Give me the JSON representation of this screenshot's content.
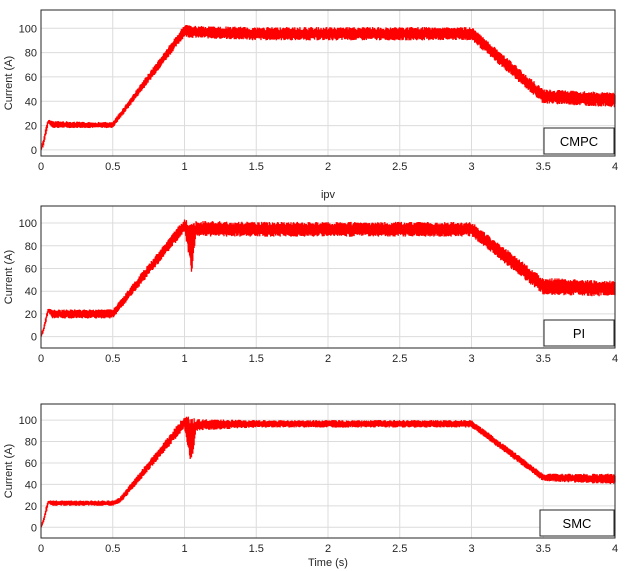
{
  "chart_data": [
    {
      "type": "line",
      "title": "",
      "xlabel": "",
      "ylabel": "Current (A)",
      "xlim": [
        0,
        4
      ],
      "ylim": [
        -5,
        115
      ],
      "xticks": [
        "0",
        "0.5",
        "1",
        "1.5",
        "2",
        "2.5",
        "3",
        "3.5",
        "4"
      ],
      "yticks": [
        "0",
        "20",
        "40",
        "60",
        "80",
        "100"
      ],
      "grid": true,
      "legend_position": "bottom-right",
      "series": [
        {
          "name": "CMPC",
          "color": "#ff0000",
          "x": [
            0,
            0.02,
            0.05,
            0.08,
            0.3,
            0.5,
            1.0,
            1.05,
            1.5,
            2.0,
            2.5,
            3.0,
            3.5,
            4.0
          ],
          "y_low": [
            0,
            5,
            22,
            18,
            18,
            18,
            93,
            92,
            90,
            90,
            90,
            90,
            38,
            35
          ],
          "y_high": [
            0,
            10,
            25,
            24,
            23,
            23,
            103,
            102,
            101,
            101,
            101,
            101,
            50,
            47
          ]
        }
      ]
    },
    {
      "type": "line",
      "title": "ipv",
      "xlabel": "",
      "ylabel": "Current (A)",
      "xlim": [
        0,
        4
      ],
      "ylim": [
        -10,
        115
      ],
      "xticks": [
        "0",
        "0.5",
        "1",
        "1.5",
        "2",
        "2.5",
        "3",
        "3.5",
        "4"
      ],
      "yticks": [
        "0",
        "20",
        "40",
        "60",
        "80",
        "100"
      ],
      "grid": true,
      "legend_position": "bottom-right",
      "series": [
        {
          "name": "PI",
          "color": "#ff0000",
          "x": [
            0,
            0.02,
            0.05,
            0.08,
            0.3,
            0.5,
            1.0,
            1.05,
            1.08,
            1.5,
            2.0,
            2.5,
            3.0,
            3.5,
            4.0
          ],
          "y_low": [
            0,
            5,
            22,
            16,
            16,
            16,
            92,
            56,
            88,
            88,
            88,
            88,
            88,
            37,
            35
          ],
          "y_high": [
            0,
            10,
            25,
            24,
            24,
            24,
            104,
            100,
            102,
            101,
            101,
            101,
            101,
            52,
            49
          ]
        }
      ]
    },
    {
      "type": "line",
      "title": "",
      "xlabel": "Time (s)",
      "ylabel": "Current (A)",
      "xlim": [
        0,
        4
      ],
      "ylim": [
        -10,
        115
      ],
      "xticks": [
        "0",
        "0.5",
        "1",
        "1.5",
        "2",
        "2.5",
        "3",
        "3.5",
        "4"
      ],
      "yticks": [
        "0",
        "20",
        "40",
        "60",
        "80",
        "100"
      ],
      "grid": true,
      "legend_position": "bottom-right",
      "series": [
        {
          "name": "SMC",
          "color": "#ff0000",
          "x": [
            0,
            0.02,
            0.05,
            0.08,
            0.3,
            0.5,
            0.55,
            1.0,
            1.05,
            1.08,
            1.5,
            2.0,
            2.5,
            3.0,
            3.5,
            4.0
          ],
          "y_low": [
            0,
            5,
            22,
            20,
            20,
            20,
            22,
            92,
            55,
            90,
            93,
            93,
            93,
            93,
            43,
            40
          ],
          "y_high": [
            0,
            10,
            25,
            25,
            25,
            25,
            28,
            104,
            103,
            101,
            100,
            100,
            100,
            100,
            50,
            50
          ]
        }
      ]
    }
  ]
}
